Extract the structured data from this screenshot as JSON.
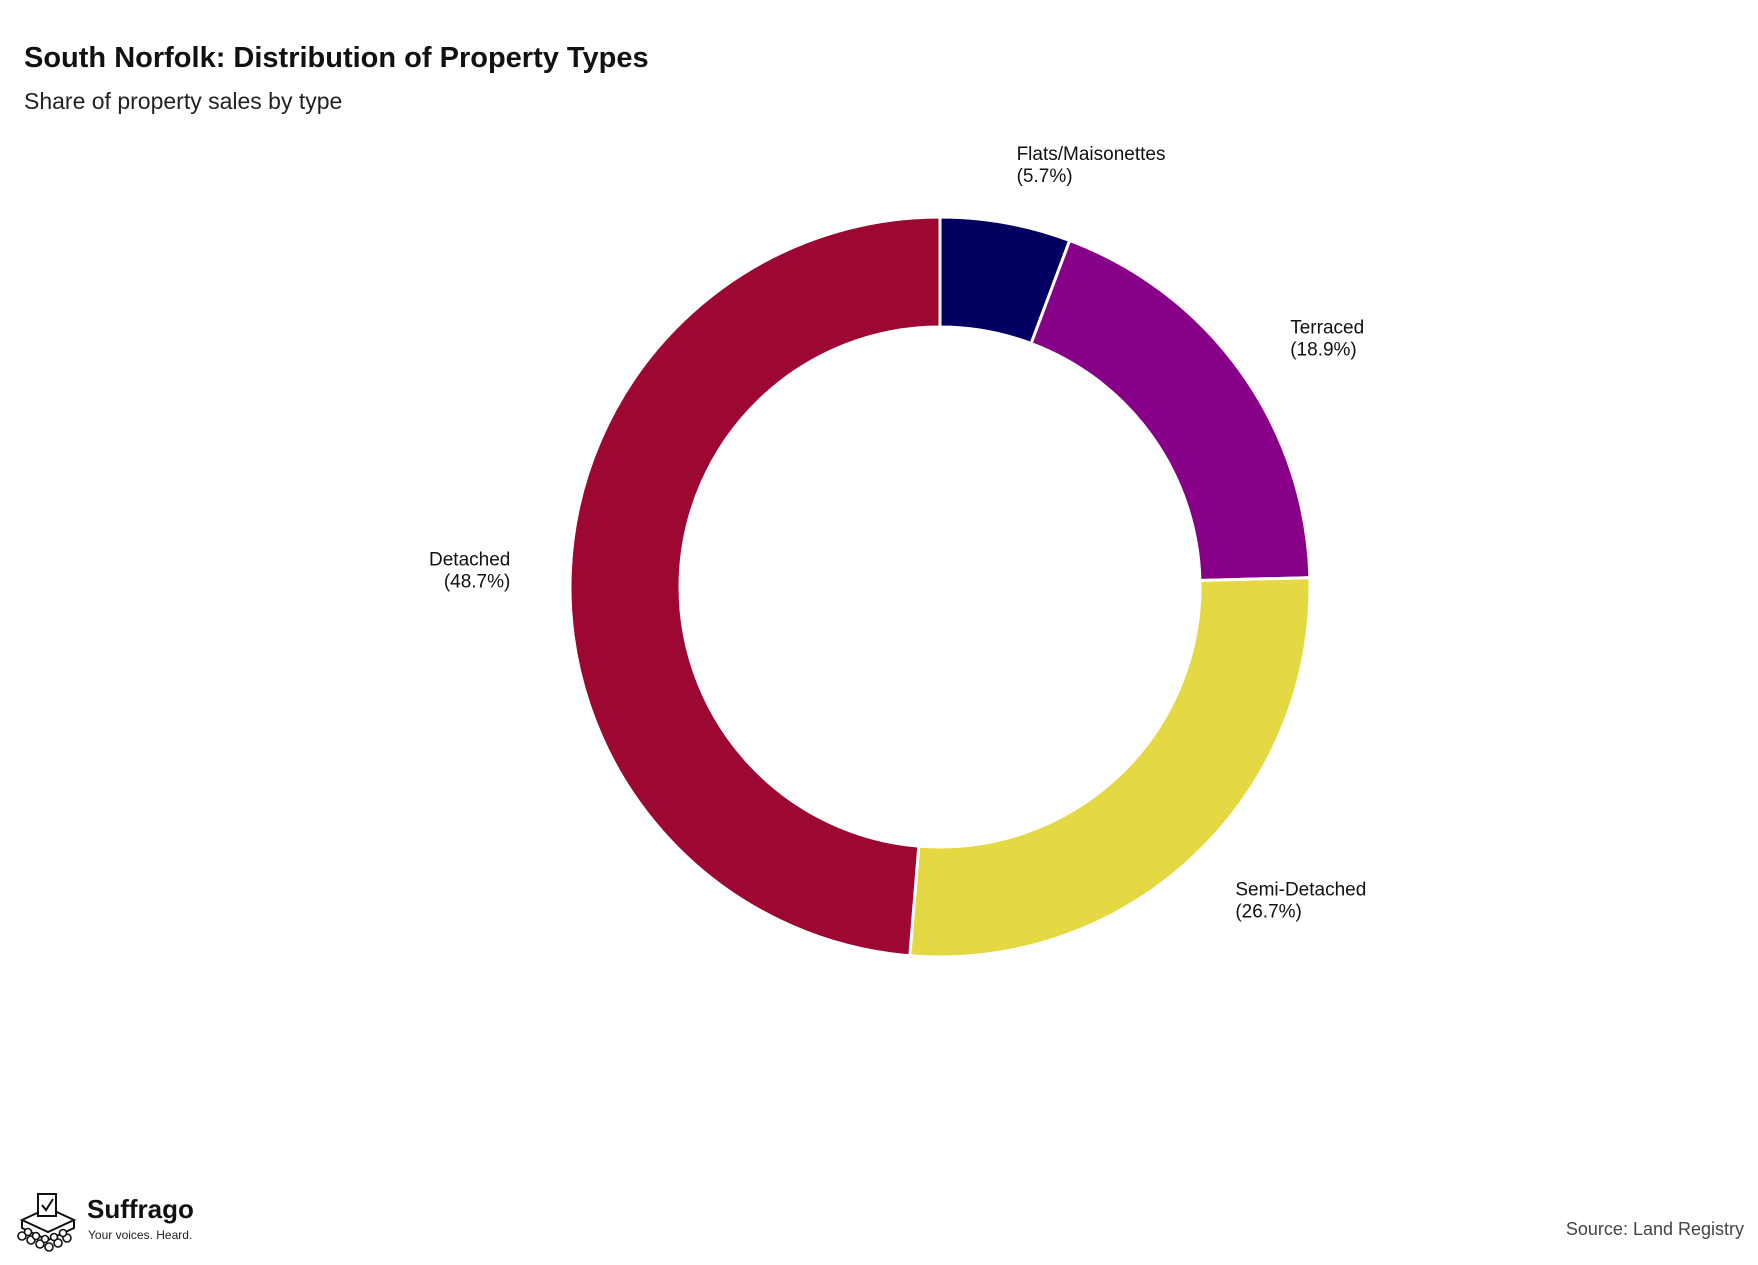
{
  "header": {
    "title": "South Norfolk: Distribution of Property Types",
    "subtitle": "Share of property sales by type"
  },
  "chart_data": {
    "type": "pie",
    "donut": true,
    "title": "South Norfolk: Distribution of Property Types",
    "subtitle": "Share of property sales by type",
    "start_angle": "12 o'clock",
    "direction": "clockwise",
    "slices": [
      {
        "label": "Flats/Maisonettes",
        "pct_label": "(5.7%)",
        "value": 5.7,
        "color": "#020060"
      },
      {
        "label": "Terraced",
        "pct_label": "(18.9%)",
        "value": 18.9,
        "color": "#880088"
      },
      {
        "label": "Semi-Detached",
        "pct_label": "(26.7%)",
        "value": 26.7,
        "color": "#e4d843"
      },
      {
        "label": "Detached",
        "pct_label": "(48.7%)",
        "value": 48.7,
        "color": "#9c0832"
      }
    ]
  },
  "footer": {
    "brand_name": "Suffrago",
    "brand_tagline": "Your voices. Heard.",
    "source": "Source: Land Registry"
  }
}
